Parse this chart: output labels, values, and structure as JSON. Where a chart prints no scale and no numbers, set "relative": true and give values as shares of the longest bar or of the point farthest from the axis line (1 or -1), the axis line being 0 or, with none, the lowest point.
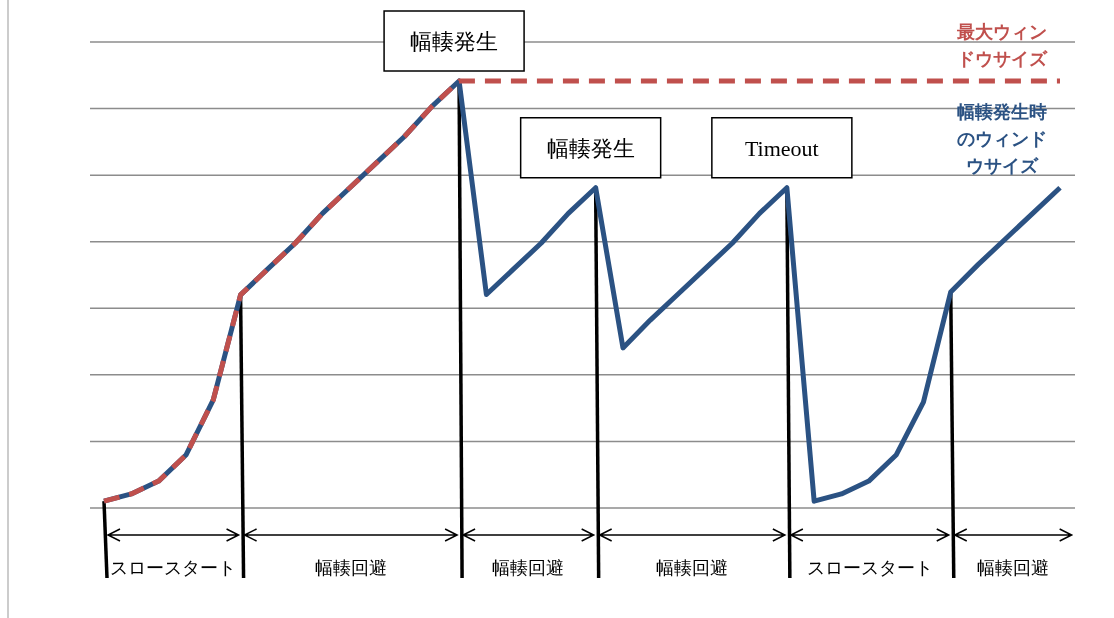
{
  "chart_data": {
    "type": "line",
    "relative": true,
    "grid": true,
    "categories": [
      null,
      null,
      null,
      null,
      null,
      null,
      null,
      null,
      null,
      null,
      null,
      null,
      null,
      null,
      null,
      null,
      null,
      null,
      null,
      null,
      null,
      null,
      null,
      null,
      null,
      null,
      null,
      null,
      null,
      null,
      null,
      null,
      null,
      null,
      null,
      null
    ],
    "series": [
      {
        "name": "幅輳発生時のウィンドウサイズ",
        "color": "#2b5283",
        "line_style": "solid",
        "values": [
          0.016,
          0.033,
          0.063,
          0.124,
          0.253,
          0.499,
          0.56,
          0.62,
          0.69,
          0.75,
          0.81,
          0.87,
          0.94,
          1,
          0.5,
          0.56,
          0.62,
          0.69,
          0.75,
          0.375,
          0.44,
          0.5,
          0.56,
          0.62,
          0.69,
          0.75,
          0.016,
          0.033,
          0.063,
          0.124,
          0.248,
          0.506,
          0.57,
          0.63,
          0.69,
          0.75
        ]
      },
      {
        "name": "最大ウィンドウサイズ",
        "color": "#c0504d",
        "line_style": "dashed",
        "values": [
          0.016,
          0.033,
          0.063,
          0.124,
          0.253,
          0.499,
          0.56,
          0.62,
          0.69,
          0.75,
          0.81,
          0.87,
          0.94,
          1,
          1,
          1,
          1,
          1,
          1,
          1,
          1,
          1,
          1,
          1,
          1,
          1,
          1,
          1,
          1,
          1,
          1,
          1,
          1,
          1,
          1,
          1
        ]
      }
    ],
    "annotations": [
      "幅輳発生",
      "幅輳発生",
      "Timeout",
      "スロースタート",
      "幅輳回避",
      "幅輳回避",
      "幅輳回避",
      "スロースタート",
      "幅輳回避"
    ]
  }
}
